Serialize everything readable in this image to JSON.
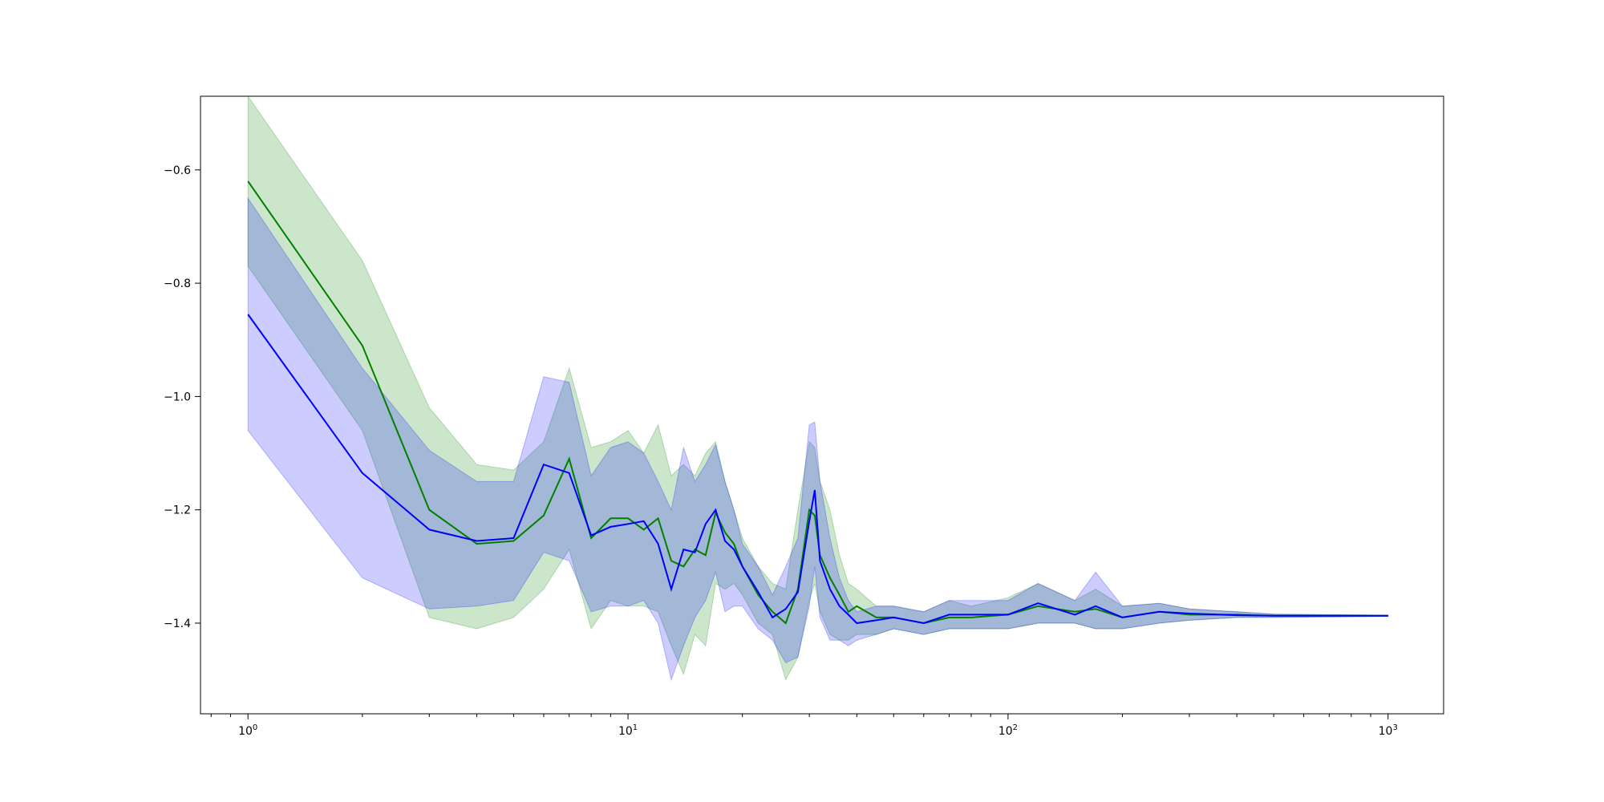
{
  "chart_data": {
    "type": "line",
    "title": "",
    "xlabel": "",
    "ylabel": "",
    "xscale": "log",
    "xlim": [
      0.75,
      1400
    ],
    "ylim": [
      -1.56,
      -0.47
    ],
    "grid": false,
    "legend": "none",
    "x_ticks": [
      {
        "value": 1,
        "base": "10",
        "exp": "0"
      },
      {
        "value": 10,
        "base": "10",
        "exp": "1"
      },
      {
        "value": 100,
        "base": "10",
        "exp": "2"
      },
      {
        "value": 1000,
        "base": "10",
        "exp": "3"
      }
    ],
    "y_ticks": [
      {
        "value": -1.4,
        "label": "−1.4"
      },
      {
        "value": -1.2,
        "label": "−1.2"
      },
      {
        "value": -1.0,
        "label": "−1.0"
      },
      {
        "value": -0.8,
        "label": "−0.8"
      },
      {
        "value": -0.6,
        "label": "−0.6"
      }
    ],
    "series": [
      {
        "color": "#008000",
        "band_color": "#008000",
        "band_opacity": 0.2,
        "x": [
          1,
          2,
          3,
          4,
          5,
          6,
          7,
          8,
          9,
          10,
          11,
          12,
          13,
          14,
          15,
          16,
          17,
          18,
          19,
          20,
          22,
          24,
          26,
          28,
          30,
          31,
          32,
          34,
          36,
          38,
          40,
          45,
          50,
          60,
          70,
          80,
          100,
          120,
          150,
          170,
          200,
          250,
          300,
          400,
          500,
          700,
          1000
        ],
        "y": [
          -0.62,
          -0.91,
          -1.2,
          -1.26,
          -1.255,
          -1.21,
          -1.11,
          -1.25,
          -1.215,
          -1.215,
          -1.235,
          -1.215,
          -1.29,
          -1.3,
          -1.27,
          -1.28,
          -1.205,
          -1.24,
          -1.26,
          -1.3,
          -1.35,
          -1.38,
          -1.4,
          -1.34,
          -1.2,
          -1.21,
          -1.28,
          -1.32,
          -1.35,
          -1.38,
          -1.37,
          -1.39,
          -1.39,
          -1.4,
          -1.39,
          -1.39,
          -1.385,
          -1.37,
          -1.38,
          -1.375,
          -1.39,
          -1.38,
          -1.385,
          -1.385,
          -1.387,
          -1.387,
          -1.387
        ],
        "upper": [
          -0.47,
          -0.76,
          -1.02,
          -1.12,
          -1.13,
          -1.08,
          -0.95,
          -1.09,
          -1.08,
          -1.06,
          -1.1,
          -1.05,
          -1.14,
          -1.12,
          -1.14,
          -1.1,
          -1.08,
          -1.15,
          -1.2,
          -1.25,
          -1.3,
          -1.33,
          -1.34,
          -1.2,
          -1.08,
          -1.09,
          -1.15,
          -1.2,
          -1.28,
          -1.33,
          -1.34,
          -1.37,
          -1.37,
          -1.38,
          -1.36,
          -1.37,
          -1.355,
          -1.33,
          -1.36,
          -1.34,
          -1.37,
          -1.365,
          -1.375,
          -1.38,
          -1.384,
          -1.385,
          -1.386
        ],
        "lower": [
          -0.77,
          -1.06,
          -1.39,
          -1.41,
          -1.39,
          -1.34,
          -1.27,
          -1.41,
          -1.36,
          -1.37,
          -1.37,
          -1.38,
          -1.44,
          -1.49,
          -1.42,
          -1.44,
          -1.33,
          -1.34,
          -1.33,
          -1.35,
          -1.4,
          -1.42,
          -1.5,
          -1.46,
          -1.36,
          -1.33,
          -1.38,
          -1.42,
          -1.43,
          -1.43,
          -1.42,
          -1.42,
          -1.41,
          -1.42,
          -1.41,
          -1.41,
          -1.41,
          -1.4,
          -1.4,
          -1.41,
          -1.41,
          -1.4,
          -1.395,
          -1.39,
          -1.39,
          -1.389,
          -1.388
        ]
      },
      {
        "color": "#0000ff",
        "band_color": "#0000ff",
        "band_opacity": 0.2,
        "x": [
          1,
          2,
          3,
          4,
          5,
          6,
          7,
          8,
          9,
          10,
          11,
          12,
          13,
          14,
          15,
          16,
          17,
          18,
          19,
          20,
          22,
          24,
          26,
          28,
          30,
          31,
          32,
          34,
          36,
          38,
          40,
          45,
          50,
          60,
          70,
          80,
          100,
          120,
          150,
          170,
          200,
          250,
          300,
          400,
          500,
          700,
          1000
        ],
        "y": [
          -0.855,
          -1.135,
          -1.235,
          -1.255,
          -1.25,
          -1.12,
          -1.135,
          -1.245,
          -1.23,
          -1.225,
          -1.22,
          -1.26,
          -1.34,
          -1.27,
          -1.275,
          -1.225,
          -1.2,
          -1.255,
          -1.27,
          -1.3,
          -1.345,
          -1.39,
          -1.375,
          -1.345,
          -1.22,
          -1.165,
          -1.29,
          -1.34,
          -1.37,
          -1.385,
          -1.4,
          -1.395,
          -1.39,
          -1.4,
          -1.385,
          -1.385,
          -1.385,
          -1.365,
          -1.385,
          -1.37,
          -1.39,
          -1.38,
          -1.383,
          -1.386,
          -1.387,
          -1.387,
          -1.387
        ],
        "upper": [
          -0.65,
          -0.95,
          -1.095,
          -1.15,
          -1.15,
          -0.965,
          -0.975,
          -1.14,
          -1.09,
          -1.08,
          -1.1,
          -1.15,
          -1.2,
          -1.09,
          -1.15,
          -1.12,
          -1.085,
          -1.15,
          -1.2,
          -1.26,
          -1.3,
          -1.35,
          -1.3,
          -1.25,
          -1.05,
          -1.045,
          -1.15,
          -1.25,
          -1.32,
          -1.36,
          -1.38,
          -1.37,
          -1.37,
          -1.38,
          -1.36,
          -1.36,
          -1.36,
          -1.33,
          -1.36,
          -1.31,
          -1.37,
          -1.365,
          -1.375,
          -1.38,
          -1.384,
          -1.385,
          -1.386
        ],
        "lower": [
          -1.06,
          -1.32,
          -1.375,
          -1.37,
          -1.36,
          -1.275,
          -1.29,
          -1.38,
          -1.37,
          -1.37,
          -1.36,
          -1.4,
          -1.5,
          -1.44,
          -1.39,
          -1.36,
          -1.31,
          -1.38,
          -1.37,
          -1.37,
          -1.41,
          -1.43,
          -1.47,
          -1.46,
          -1.37,
          -1.3,
          -1.39,
          -1.43,
          -1.43,
          -1.44,
          -1.43,
          -1.42,
          -1.41,
          -1.42,
          -1.41,
          -1.41,
          -1.41,
          -1.4,
          -1.4,
          -1.41,
          -1.41,
          -1.4,
          -1.395,
          -1.39,
          -1.39,
          -1.389,
          -1.388
        ]
      }
    ]
  }
}
